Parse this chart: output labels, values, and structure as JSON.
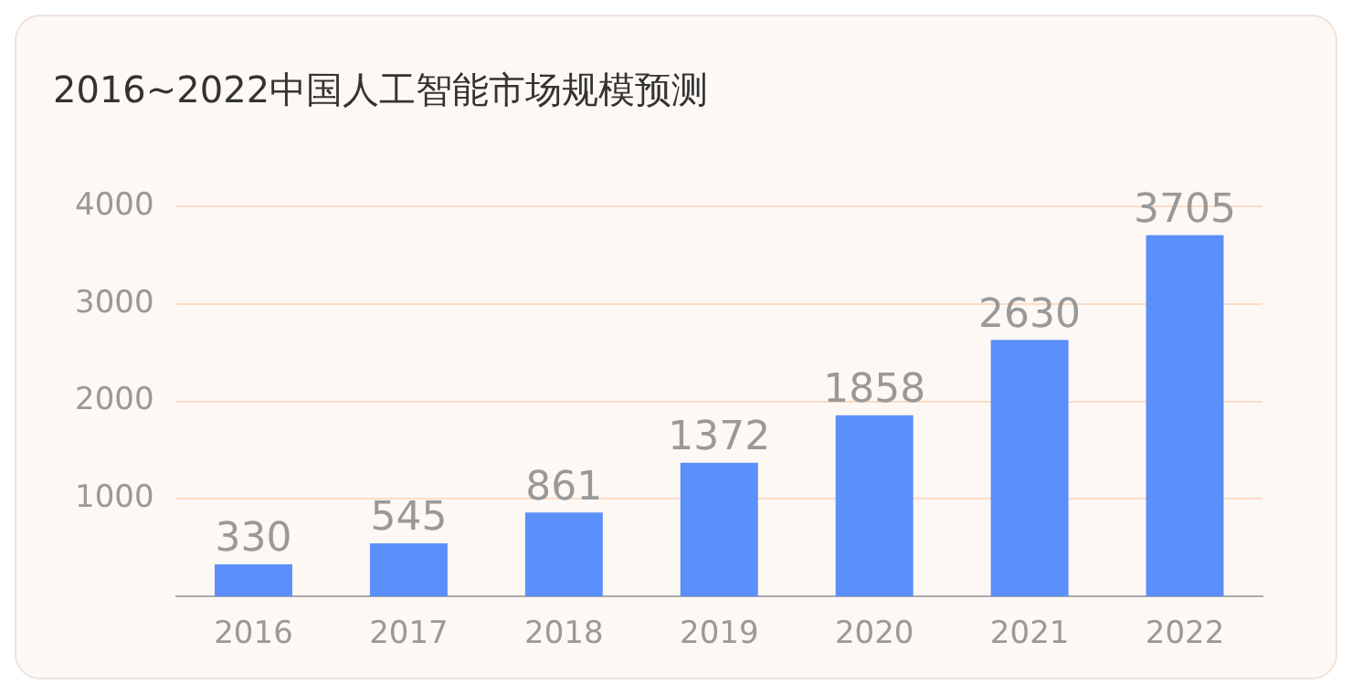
{
  "chart_data": {
    "type": "bar",
    "title": "2016~2022中国人工智能市场规模预测",
    "categories": [
      "2016",
      "2017",
      "2018",
      "2019",
      "2020",
      "2021",
      "2022"
    ],
    "values": [
      330,
      545,
      861,
      1372,
      1858,
      2630,
      3705
    ],
    "color": "#5b8ff9",
    "ylim": [
      0,
      4000
    ],
    "yticks": [
      1000,
      2000,
      3000,
      4000
    ],
    "grid": "y",
    "data_labels": true,
    "legend": false
  }
}
